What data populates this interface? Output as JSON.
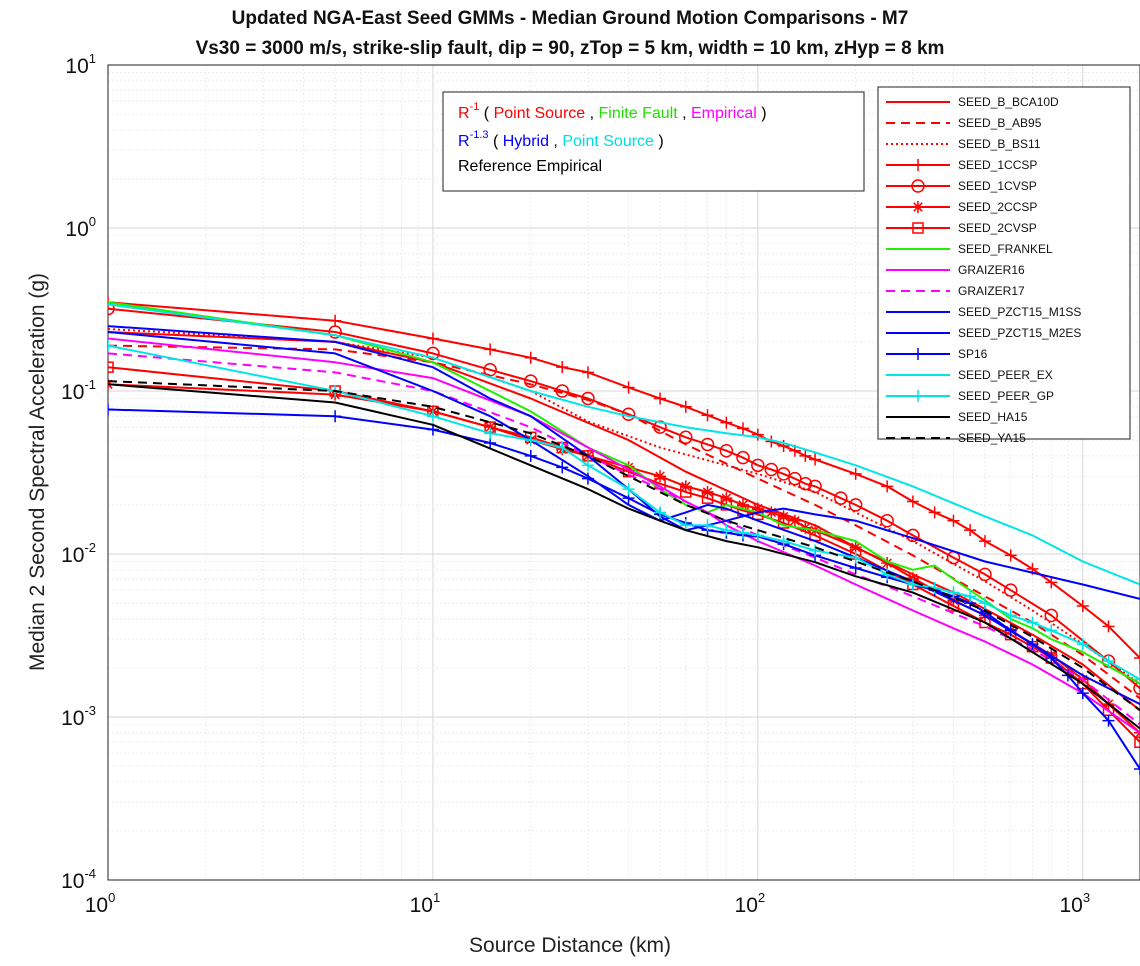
{
  "chart_data": {
    "type": "line",
    "title": "Updated NGA-East Seed GMMs - Median Ground Motion Comparisons - M7",
    "subtitle": "Vs30 = 3000 m/s, strike-slip fault, dip = 90, zTop = 5 km, width = 10 km, zHyp = 8 km",
    "xlabel": "Source Distance (km)",
    "ylabel": "Median 2 Second Spectral Acceleration (g)",
    "xscale": "log",
    "yscale": "log",
    "xlim": [
      1,
      1500
    ],
    "ylim": [
      0.0001,
      10
    ],
    "x_ticks": [
      {
        "base": "10",
        "exp": "0",
        "value": 1
      },
      {
        "base": "10",
        "exp": "1",
        "value": 10
      },
      {
        "base": "10",
        "exp": "2",
        "value": 100
      },
      {
        "base": "10",
        "exp": "3",
        "value": 1000
      }
    ],
    "y_ticks": [
      {
        "base": "10",
        "exp": "-4",
        "value": 0.0001
      },
      {
        "base": "10",
        "exp": "-3",
        "value": 0.001
      },
      {
        "base": "10",
        "exp": "-2",
        "value": 0.01
      },
      {
        "base": "10",
        "exp": "-1",
        "value": 0.1
      },
      {
        "base": "10",
        "exp": "0",
        "value": 1
      },
      {
        "base": "10",
        "exp": "1",
        "value": 10
      }
    ],
    "grid": true,
    "legend_position": "top-right",
    "annotation": {
      "line1": [
        {
          "text": "R",
          "color": "#ff0000"
        },
        {
          "text": "-1",
          "color": "#ff0000",
          "sup": true
        },
        {
          "text": " ( ",
          "color": "#000000"
        },
        {
          "text": "Point Source",
          "color": "#ff0000"
        },
        {
          "text": " , ",
          "color": "#000000"
        },
        {
          "text": "Finite Fault",
          "color": "#22dd00"
        },
        {
          "text": " , ",
          "color": "#000000"
        },
        {
          "text": "Empirical",
          "color": "#ff00ff"
        },
        {
          "text": " )",
          "color": "#000000"
        }
      ],
      "line2": [
        {
          "text": "R",
          "color": "#0000ff"
        },
        {
          "text": "-1.3",
          "color": "#0000ff",
          "sup": true
        },
        {
          "text": " ( ",
          "color": "#000000"
        },
        {
          "text": "Hybrid",
          "color": "#0000ff"
        },
        {
          "text": " , ",
          "color": "#000000"
        },
        {
          "text": "Point Source",
          "color": "#00dddd"
        },
        {
          "text": " )",
          "color": "#000000"
        }
      ],
      "line3": [
        {
          "text": "Reference Empirical",
          "color": "#000000"
        }
      ]
    },
    "series": [
      {
        "name": "SEED_B_BCA10D",
        "color": "#ff0000",
        "dash": "solid",
        "marker": "none",
        "x": [
          1,
          5,
          10,
          20,
          40,
          60,
          100,
          150,
          200,
          300,
          400,
          500,
          700,
          1000,
          1500
        ],
        "y": [
          0.23,
          0.2,
          0.15,
          0.09,
          0.05,
          0.032,
          0.02,
          0.015,
          0.011,
          0.0075,
          0.0058,
          0.0046,
          0.0032,
          0.0021,
          0.0011
        ]
      },
      {
        "name": "SEED_B_AB95",
        "color": "#ff0000",
        "dash": "dash",
        "marker": "none",
        "x": [
          1,
          5,
          10,
          20,
          30,
          40,
          60,
          100,
          150,
          200,
          300,
          500,
          700,
          1000,
          1500
        ],
        "y": [
          0.19,
          0.18,
          0.15,
          0.11,
          0.088,
          0.072,
          0.047,
          0.029,
          0.02,
          0.015,
          0.0098,
          0.0055,
          0.0038,
          0.0024,
          0.0013
        ]
      },
      {
        "name": "SEED_B_BS11",
        "color": "#ff0000",
        "dash": "dot",
        "marker": "none",
        "x": [
          1,
          5,
          10,
          20,
          30,
          50,
          100,
          150,
          200,
          300,
          500,
          700,
          1000,
          1500
        ],
        "y": [
          0.24,
          0.2,
          0.16,
          0.1,
          0.065,
          0.045,
          0.031,
          0.024,
          0.018,
          0.012,
          0.0068,
          0.0045,
          0.0028,
          0.0016
        ]
      },
      {
        "name": "SEED_1CCSP",
        "color": "#ff0000",
        "dash": "solid",
        "marker": "plus",
        "x": [
          1,
          5,
          10,
          15,
          20,
          25,
          30,
          40,
          50,
          60,
          70,
          80,
          90,
          100,
          110,
          120,
          130,
          140,
          150,
          200,
          250,
          300,
          350,
          400,
          450,
          500,
          600,
          700,
          800,
          1000,
          1200,
          1500
        ],
        "y": [
          0.35,
          0.27,
          0.21,
          0.18,
          0.16,
          0.14,
          0.13,
          0.105,
          0.09,
          0.08,
          0.071,
          0.064,
          0.059,
          0.054,
          0.049,
          0.046,
          0.043,
          0.04,
          0.038,
          0.031,
          0.026,
          0.021,
          0.018,
          0.016,
          0.014,
          0.012,
          0.0098,
          0.0081,
          0.0067,
          0.0048,
          0.0036,
          0.0023
        ]
      },
      {
        "name": "SEED_1CVSP",
        "color": "#ff0000",
        "dash": "solid",
        "marker": "circle",
        "x": [
          1,
          5,
          10,
          15,
          20,
          25,
          30,
          40,
          50,
          60,
          70,
          80,
          90,
          100,
          110,
          120,
          130,
          140,
          150,
          180,
          200,
          250,
          300,
          400,
          500,
          600,
          800,
          1200,
          1500
        ],
        "y": [
          0.32,
          0.23,
          0.17,
          0.135,
          0.115,
          0.1,
          0.09,
          0.072,
          0.06,
          0.052,
          0.047,
          0.043,
          0.039,
          0.035,
          0.033,
          0.031,
          0.029,
          0.027,
          0.026,
          0.022,
          0.02,
          0.016,
          0.013,
          0.0095,
          0.0075,
          0.006,
          0.0042,
          0.0022,
          0.0015
        ]
      },
      {
        "name": "SEED_2CCSP",
        "color": "#ff0000",
        "dash": "solid",
        "marker": "asterisk",
        "x": [
          1,
          5,
          10,
          15,
          20,
          25,
          30,
          40,
          50,
          60,
          70,
          80,
          90,
          100,
          110,
          120,
          130,
          140,
          150,
          200,
          250,
          300,
          400,
          500,
          600,
          800,
          1000,
          1200,
          1500
        ],
        "y": [
          0.11,
          0.095,
          0.075,
          0.06,
          0.05,
          0.044,
          0.04,
          0.034,
          0.03,
          0.026,
          0.024,
          0.022,
          0.02,
          0.019,
          0.018,
          0.017,
          0.016,
          0.0145,
          0.014,
          0.011,
          0.0088,
          0.0071,
          0.0052,
          0.0042,
          0.0034,
          0.0024,
          0.0017,
          0.0012,
          0.0008
        ]
      },
      {
        "name": "SEED_2CVSP",
        "color": "#ff0000",
        "dash": "solid",
        "marker": "square",
        "x": [
          1,
          5,
          10,
          15,
          20,
          25,
          30,
          40,
          50,
          60,
          70,
          80,
          90,
          100,
          120,
          150,
          200,
          300,
          400,
          500,
          600,
          700,
          800,
          1000,
          1200,
          1500
        ],
        "y": [
          0.14,
          0.1,
          0.075,
          0.06,
          0.052,
          0.045,
          0.04,
          0.032,
          0.027,
          0.024,
          0.022,
          0.02,
          0.0185,
          0.0175,
          0.0155,
          0.013,
          0.01,
          0.0065,
          0.0048,
          0.0038,
          0.0032,
          0.0027,
          0.0023,
          0.0016,
          0.0011,
          0.0007
        ]
      },
      {
        "name": "SEED_FRANKEL",
        "color": "#22ee00",
        "dash": "solid",
        "marker": "none",
        "x": [
          1,
          5,
          10,
          15,
          20,
          30,
          40,
          50,
          60,
          70,
          80,
          100,
          120,
          150,
          200,
          250,
          300,
          350,
          400,
          450,
          500,
          600,
          700,
          800,
          1000,
          1500
        ],
        "y": [
          0.35,
          0.22,
          0.15,
          0.1,
          0.075,
          0.045,
          0.035,
          0.025,
          0.02,
          0.018,
          0.02,
          0.018,
          0.015,
          0.014,
          0.012,
          0.009,
          0.008,
          0.0085,
          0.007,
          0.006,
          0.0052,
          0.004,
          0.0035,
          0.003,
          0.0025,
          0.0016
        ]
      },
      {
        "name": "GRAIZER16",
        "color": "#ff00ff",
        "dash": "solid",
        "marker": "none",
        "x": [
          1,
          5,
          10,
          20,
          30,
          40,
          50,
          60,
          70,
          80,
          100,
          150,
          200,
          300,
          400,
          500,
          700,
          1000,
          1500
        ],
        "y": [
          0.21,
          0.15,
          0.12,
          0.07,
          0.045,
          0.033,
          0.026,
          0.021,
          0.018,
          0.015,
          0.012,
          0.0085,
          0.0065,
          0.0045,
          0.0035,
          0.0029,
          0.0021,
          0.0014,
          0.0008
        ]
      },
      {
        "name": "GRAIZER17",
        "color": "#ff00ff",
        "dash": "dash",
        "marker": "none",
        "x": [
          1,
          5,
          10,
          20,
          30,
          50,
          70,
          100,
          150,
          200,
          300,
          500,
          700,
          1000,
          1500
        ],
        "y": [
          0.17,
          0.13,
          0.1,
          0.06,
          0.04,
          0.025,
          0.018,
          0.013,
          0.0095,
          0.0075,
          0.0055,
          0.0036,
          0.0026,
          0.0017,
          0.0009
        ]
      },
      {
        "name": "SEED_PZCT15_M1SS",
        "color": "#0000ff",
        "dash": "solid",
        "marker": "none",
        "x": [
          1,
          5,
          10,
          15,
          20,
          30,
          40,
          50,
          60,
          70,
          80,
          100,
          120,
          150,
          200,
          300,
          500,
          1000,
          1500
        ],
        "y": [
          0.25,
          0.2,
          0.14,
          0.09,
          0.07,
          0.04,
          0.025,
          0.017,
          0.014,
          0.015,
          0.016,
          0.018,
          0.019,
          0.0175,
          0.016,
          0.0125,
          0.009,
          0.0065,
          0.0053
        ]
      },
      {
        "name": "SEED_PZCT15_M2ES",
        "color": "#0000ff",
        "dash": "solid",
        "marker": "none",
        "x": [
          1,
          5,
          10,
          15,
          20,
          30,
          40,
          50,
          60,
          70,
          80,
          100,
          150,
          200,
          300,
          500,
          700,
          1000,
          1500
        ],
        "y": [
          0.23,
          0.17,
          0.1,
          0.07,
          0.05,
          0.03,
          0.02,
          0.016,
          0.018,
          0.02,
          0.019,
          0.016,
          0.012,
          0.0095,
          0.0068,
          0.0042,
          0.0028,
          0.0018,
          0.0012
        ]
      },
      {
        "name": "SP16",
        "color": "#0000ff",
        "dash": "solid",
        "marker": "plus",
        "x": [
          1,
          5,
          10,
          15,
          20,
          25,
          30,
          40,
          50,
          60,
          70,
          80,
          90,
          100,
          120,
          150,
          200,
          250,
          300,
          350,
          400,
          450,
          500,
          600,
          700,
          800,
          900,
          1000,
          1200,
          1500
        ],
        "y": [
          0.077,
          0.07,
          0.058,
          0.048,
          0.04,
          0.034,
          0.029,
          0.022,
          0.0175,
          0.0155,
          0.014,
          0.0135,
          0.013,
          0.0128,
          0.0115,
          0.0098,
          0.0082,
          0.0072,
          0.0065,
          0.006,
          0.0055,
          0.005,
          0.0044,
          0.0034,
          0.0028,
          0.0023,
          0.0018,
          0.0014,
          0.00095,
          0.00048
        ]
      },
      {
        "name": "SEED_PEER_EX",
        "color": "#00e5e5",
        "dash": "solid",
        "marker": "none",
        "x": [
          1,
          5,
          10,
          20,
          30,
          40,
          60,
          80,
          100,
          120,
          150,
          200,
          300,
          500,
          700,
          1000,
          1500
        ],
        "y": [
          0.34,
          0.22,
          0.16,
          0.1,
          0.08,
          0.07,
          0.06,
          0.055,
          0.052,
          0.048,
          0.042,
          0.035,
          0.026,
          0.017,
          0.013,
          0.009,
          0.0065
        ]
      },
      {
        "name": "SEED_PEER_GP",
        "color": "#00e5e5",
        "dash": "solid",
        "marker": "plus",
        "x": [
          1,
          5,
          10,
          15,
          20,
          25,
          30,
          40,
          50,
          60,
          70,
          80,
          90,
          100,
          120,
          150,
          200,
          250,
          300,
          350,
          400,
          450,
          500,
          600,
          700,
          800,
          1000,
          1200,
          1500
        ],
        "y": [
          0.19,
          0.1,
          0.07,
          0.055,
          0.05,
          0.045,
          0.035,
          0.025,
          0.018,
          0.015,
          0.015,
          0.014,
          0.0135,
          0.013,
          0.012,
          0.0105,
          0.0095,
          0.0075,
          0.0065,
          0.0062,
          0.0058,
          0.0055,
          0.005,
          0.0042,
          0.0038,
          0.0034,
          0.0028,
          0.0022,
          0.0017
        ]
      },
      {
        "name": "SEED_HA15",
        "color": "#000000",
        "dash": "solid",
        "marker": "none",
        "x": [
          1,
          5,
          10,
          20,
          30,
          40,
          50,
          60,
          80,
          100,
          150,
          200,
          300,
          500,
          700,
          1000,
          1500
        ],
        "y": [
          0.11,
          0.085,
          0.062,
          0.035,
          0.025,
          0.019,
          0.016,
          0.014,
          0.012,
          0.011,
          0.0089,
          0.0073,
          0.0058,
          0.0038,
          0.0025,
          0.0016,
          0.00085
        ]
      },
      {
        "name": "SEED_YA15",
        "color": "#000000",
        "dash": "dash",
        "marker": "none",
        "x": [
          1,
          5,
          10,
          20,
          30,
          40,
          50,
          60,
          80,
          100,
          150,
          200,
          300,
          500,
          700,
          1000,
          1500
        ],
        "y": [
          0.115,
          0.1,
          0.08,
          0.055,
          0.04,
          0.03,
          0.024,
          0.02,
          0.016,
          0.014,
          0.011,
          0.009,
          0.0068,
          0.0045,
          0.0031,
          0.002,
          0.0011
        ]
      }
    ]
  }
}
